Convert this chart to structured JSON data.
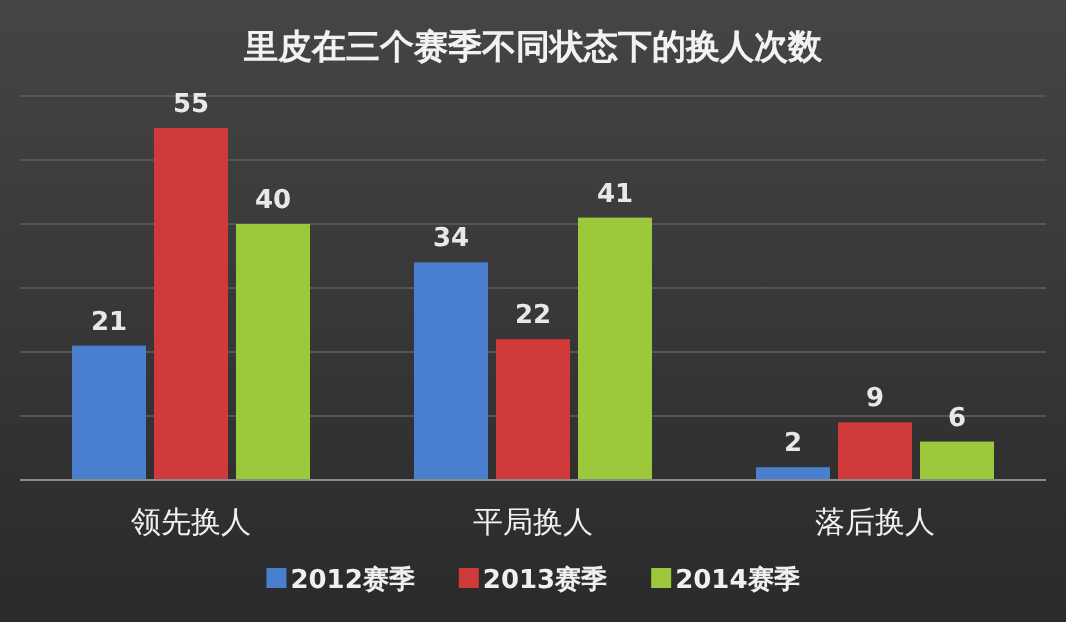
{
  "chart_data": {
    "type": "bar",
    "title": "里皮在三个赛季不同状态下的换人次数",
    "categories": [
      "领先换人",
      "平局换人",
      "落后换人"
    ],
    "series": [
      {
        "name": "2012赛季",
        "color": "#4a7fd0",
        "values": [
          21,
          34,
          2
        ]
      },
      {
        "name": "2013赛季",
        "color": "#d03a3a",
        "values": [
          55,
          22,
          9
        ]
      },
      {
        "name": "2014赛季",
        "color": "#9cc83c",
        "values": [
          40,
          41,
          6
        ]
      }
    ],
    "ylim": [
      0,
      60
    ],
    "yticks": [
      {
        "value": 0,
        "label": null
      },
      {
        "value": 10,
        "label": null
      },
      {
        "value": 20,
        "label": null
      },
      {
        "value": 30,
        "label": null
      },
      {
        "value": 40,
        "label": null
      },
      {
        "value": 50,
        "label": null
      },
      {
        "value": 60,
        "label": null
      }
    ],
    "grid": "y",
    "legend": "bottom",
    "data_labels": true
  }
}
